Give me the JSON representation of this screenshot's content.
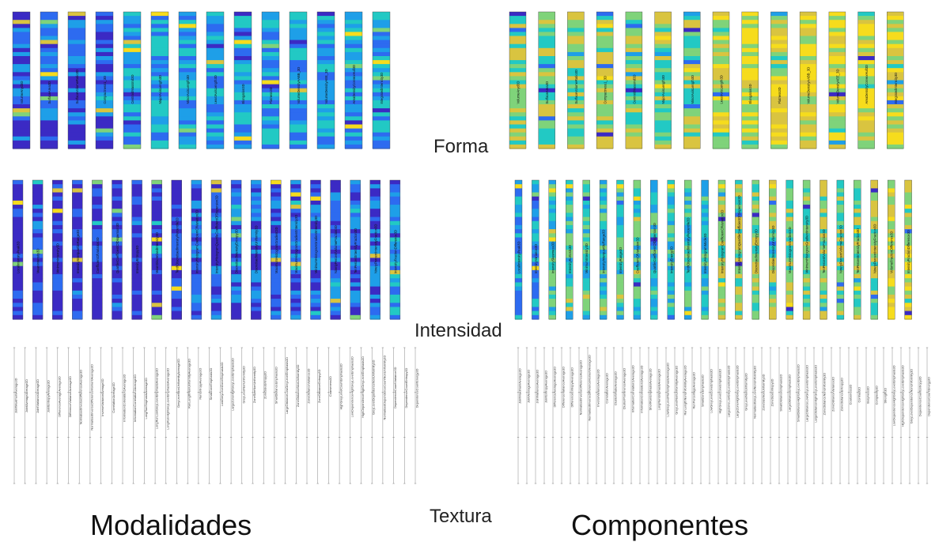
{
  "labels": {
    "forma": "Forma",
    "intensidad": "Intensidad",
    "textura": "Textura",
    "modalidades": "Modalidades",
    "componentes": "Componentes"
  },
  "colors": {
    "colormap": [
      "#3b2ac4",
      "#2d6bf0",
      "#1e9fe8",
      "#22c9c4",
      "#7fd37a",
      "#d9c440",
      "#f6dc1d"
    ]
  },
  "chart_data": [
    {
      "type": "heatmap",
      "title": "",
      "group": "Modalidades",
      "section": "Forma",
      "columns": [
        "VolumeAnyd3D",
        "SurfaceArea3D",
        "SurfaceVolumeRatio3D",
        "Compactness1_3D",
        "CentroidMassInd3D",
        "MajorAxisLength3D",
        "MinorAxisLength3D",
        "LeastAxisLength3D",
        "Elongation3D",
        "Flatness3D",
        "VolumeDensityAABB_3D",
        "VolumeDensityAEE_3D",
        "AreaDensityConvexHull3D",
        "IntegratedIntensity3D"
      ]
    },
    {
      "type": "heatmap",
      "title": "",
      "group": "Componentes",
      "section": "Forma",
      "columns": [
        "VolumeAnyd3D",
        "SurfaceArea3D",
        "SurfaceVolumeRatio3D",
        "Compactness1_3D",
        "CentroidMassInd3D",
        "MajorAxisLength3D",
        "MinorAxisLength3D",
        "LeastAxisLength3D",
        "Elongation3D",
        "Flatness3D",
        "VolumeDensityAABB_3D",
        "VolumeDensityAEE_3D",
        "AreaDensityConvexHull3D",
        "IntegratedIntensity3D"
      ]
    },
    {
      "type": "heatmap",
      "title": "",
      "group": "Modalidades",
      "section": "Intensidad",
      "columns": [
        "LocalIntensityPeak3D",
        "MeanIntensity3D",
        "MinimumIntensity3D",
        "IntensityInterquartileRange3D",
        "CoefficientOfVariation3D",
        "QuartileCoefficientOfDispersion3D",
        "IntensityEntropy3D",
        "MeanDiscretisedIntensity3D",
        "TenthDiscretisedIntensityPercentile3D",
        "IntensityHistogramCoefficientOfVariation3D",
        "IntensityHistogramQuartileCoefficientOfDispersion3D",
        "DiscretisedIntensityEntropy3D",
        "DiscretisedIntensityUniformity3D",
        "MaximumHistogramGradient3D",
        "MaximumHistogramGradientIntensity3D",
        "MinimumHistogramGradientIntensity3D",
        "NinetyPercentVolumeFraction3D",
        "TenPercentIntensityFraction3D",
        "NinetyPercentIntensityFraction3D",
        "IntensityFractionDifference3D"
      ]
    },
    {
      "type": "heatmap",
      "title": "",
      "group": "Componentes",
      "section": "Intensidad",
      "columns": [
        "LocalIntensityPeak3D",
        "IntensityVariance3D",
        "IntensitySkewness3D",
        "IntensityKurtosis3D",
        "MinimumIntensity3D",
        "IntensityInterquartileRange3D",
        "IntensityRange3D",
        "CoefficientOfVariation3D",
        "QuartileCoefficientOfDispersion3D",
        "IntensityEnergy3D",
        "TenthDiscretisedIntensityPercentile3D",
        "IntensityHistogramMode3D",
        "IntensityHistogramCoefficientOfVariation3D",
        "IntensityHistogramQuartileCoefficientOfDispersion3D",
        "DiscretisedIntensityEntropy3D",
        "DiscretisedIntensityUniformity3D",
        "MaximumHistogramGradient3D",
        "MinimumHistogramGradientIntensity3D",
        "TenPercentVolumeFraction3D",
        "NinetyPercentVolumeFraction3D",
        "TenPercentIntensityFraction3D",
        "NinetyPercentIntensityFraction3D",
        "VolumeFractionDifference3D",
        "IntensityFractionDifference3D"
      ]
    },
    {
      "type": "table",
      "title": "",
      "group": "Modalidades",
      "section": "Textura",
      "columns": [
        "JointMaximumAverage3D",
        "JointAverageAverage3D",
        "JointVarianceAverage3D",
        "JointEntropyAverage3D",
        "DifferenceAverageAverage3D",
        "DifferenceVarianceAverage3D",
        "NormalisedInverseDifferenceAverage3D",
        "NormalisedInverseDifferenceMomentAverage3D",
        "InverseVarianceAverage3D",
        "CorrelationAverage3D",
        "InformationCorrelation1Average3D",
        "InformationCorrelation2Average3D",
        "LongRunEmphasisAverage3D",
        "LongRunLowGreyLevelEmphasisAverage3D",
        "LongRunHighGreyLevelEmphasisAverage3D",
        "GreyLevelNonUniformityAverage3D",
        "RunLengthNonUniformityAverage3D",
        "RunEntropyAverage3D",
        "SmallZoneEmphasis3D",
        "LowGreyLevelZoneEmphasis3D",
        "LargeZoneHighGreyLevelEmphasis3D",
        "GreyLevelNonUniformity3D",
        "ZoneSizeNonUniformity3D",
        "ZoneSizeEntropy3D",
        "SmallDistanceEmphasis3D",
        "LargeDistanceLowGreyLevelEmphasis3D",
        "ZoneDistanceNonUniformity3D",
        "ZoneDistanceVariance3D",
        "ZoneDistanceEntropy3D",
        "Coarseness3D",
        "HighGreyLevelCountEmphasis3D",
        "LowDependenceHighGreyLevelEmphasis3D",
        "HighDependenceHighGreyLevelEmphasis3D",
        "GreyLevelDependenceNonUniformity3D",
        "NormalisedDependenceCountNonUniformity3D",
        "DependenceCountVariance3D",
        "DependenceCountEntropy3D",
        "DependenceCountEnergy3D"
      ]
    },
    {
      "type": "table",
      "title": "",
      "group": "Componentes",
      "section": "Textura",
      "columns": [
        "JointMaximumAverage3D",
        "JointAverageAverage3D",
        "JointVarianceAverage3D",
        "JointEntropyAverage3D",
        "DifferenceAverageAverage3D",
        "DifferenceVarianceAverage3D",
        "DifferenceEntropyAverage3D",
        "NormalisedInverseDifferenceAverage3D",
        "NormalisedInverseDifferenceMomentAverage3D",
        "InverseVarianceAverage3D",
        "CorrelationAverage3D",
        "ClusterShadeAverage3D",
        "ClusterProminenceAverage3D",
        "InformationCorrelation1Average3D",
        "InformationCorrelation2Average3D",
        "ShortRunEmphasisAverage3D",
        "LongRunEmphasisAverage3D",
        "LowGreyLevelRunEmphasisAverage3D",
        "GreyLevelNonUniformityAverage3D",
        "RunLengthNonUniformityAverage3D",
        "RunPercentageAverage3D",
        "SmallZoneEmphasis3D",
        "LowGreyLevelZoneEmphasis3D",
        "HighGreyLevelZoneEmphasis3D",
        "LargeZoneLowGreyLevelEmphasis3D",
        "LargeZoneHighGreyLevelEmphasis3D",
        "GreyLevelNonUniformity3D",
        "NormalisedGreyLevelNonUniformity3D",
        "ZoneSizeNonUniformity3D",
        "ZoneSizeEntropy3D",
        "SmallDistanceEmphasis3D",
        "LargeDistanceEmphasis3D",
        "SmallDistanceHighGreyLevelEmphasis3D",
        "LargeDistanceLowGreyLevelEmphasis3D",
        "LargeDistanceHighGreyLevelEmphasis3D",
        "ZoneDistanceNonUniformity3D",
        "ZoneDistanceVariance3D",
        "ZoneDistanceEntropy3D",
        "Coarseness3D",
        "Contrast3D",
        "Busyness3D",
        "Complexity3D",
        "Strength3D",
        "LowDependenceHighGreyLevelEmphasis3D",
        "HighDependenceHighGreyLevelEmphasis3D",
        "GreyLevelDependenceNonUniformity3D",
        "DependenceCountEntropy3D",
        "DependenceCountEnergy3D"
      ]
    }
  ]
}
